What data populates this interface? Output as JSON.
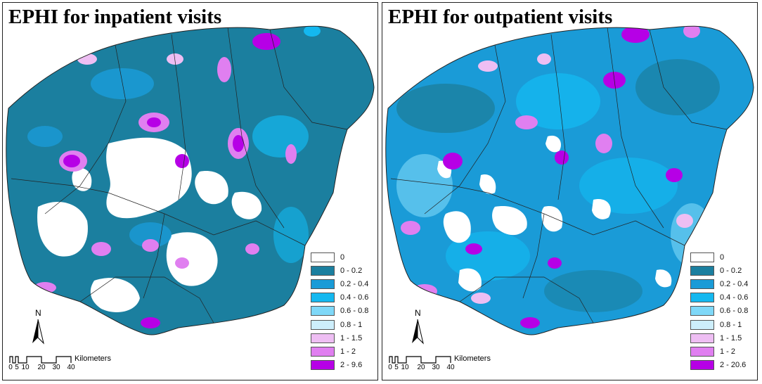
{
  "panels": [
    {
      "id": "inpatient",
      "title": "EPHI for inpatient visits",
      "legend": [
        {
          "label": "0",
          "color": "#ffffff"
        },
        {
          "label": "0 - 0.2",
          "color": "#1b7f9f"
        },
        {
          "label": "0.2 - 0.4",
          "color": "#1a9bd7"
        },
        {
          "label": "0.4 - 0.6",
          "color": "#14b8f0"
        },
        {
          "label": "0.6 - 0.8",
          "color": "#7fd8f8"
        },
        {
          "label": "0.8 - 1",
          "color": "#cdeefb"
        },
        {
          "label": "1 - 1.5",
          "color": "#eebef3"
        },
        {
          "label": "1 - 2",
          "color": "#e07ff0"
        },
        {
          "label": "2 - 9.6",
          "color": "#b600e6"
        }
      ]
    },
    {
      "id": "outpatient",
      "title": "EPHI for outpatient visits",
      "legend": [
        {
          "label": "0",
          "color": "#ffffff"
        },
        {
          "label": "0 - 0.2",
          "color": "#1b7f9f"
        },
        {
          "label": "0.2 - 0.4",
          "color": "#1a9bd7"
        },
        {
          "label": "0.4 - 0.6",
          "color": "#14b8f0"
        },
        {
          "label": "0.6 - 0.8",
          "color": "#7fd8f8"
        },
        {
          "label": "0.8 - 1",
          "color": "#cdeefb"
        },
        {
          "label": "1 - 1.5",
          "color": "#eebef3"
        },
        {
          "label": "1 - 2",
          "color": "#e07ff0"
        },
        {
          "label": "2 - 20.6",
          "color": "#b600e6"
        }
      ]
    }
  ],
  "north_arrow": {
    "label": "N"
  },
  "scale_bar": {
    "unit": "Kilometers",
    "ticks": [
      "0",
      "5",
      "10",
      "20",
      "30",
      "40"
    ]
  }
}
